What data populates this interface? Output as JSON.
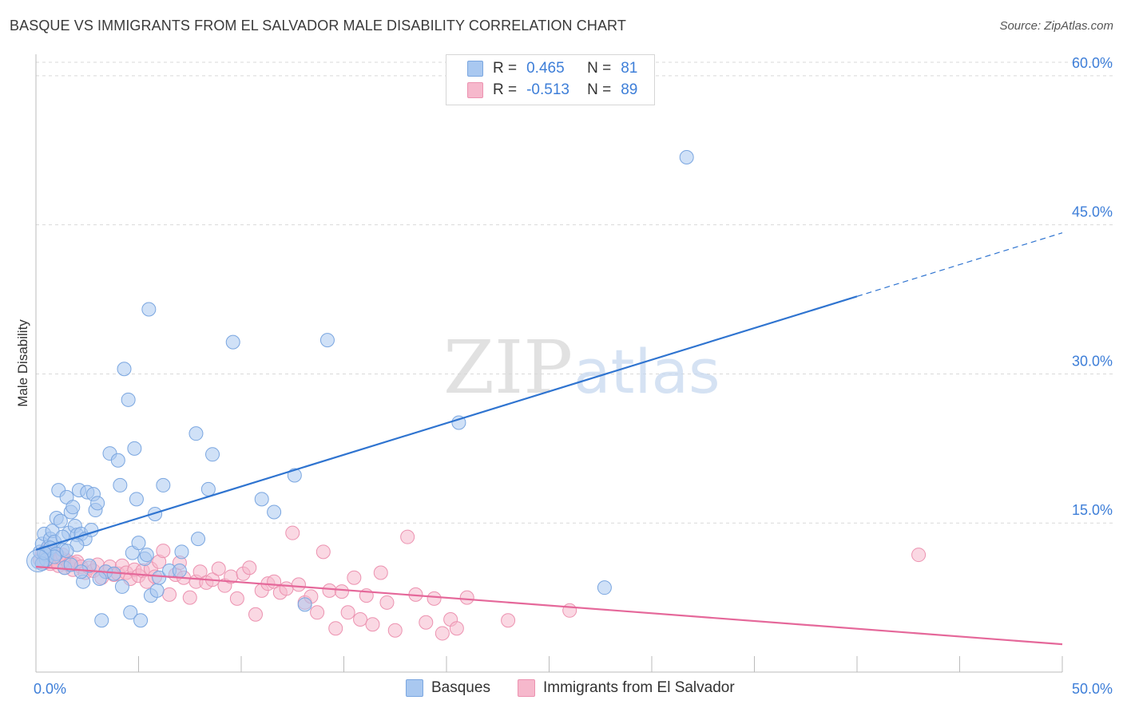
{
  "title": "BASQUE VS IMMIGRANTS FROM EL SALVADOR MALE DISABILITY CORRELATION CHART",
  "source": "Source: ZipAtlas.com",
  "watermark": {
    "zip": "ZIP",
    "atlas": "atlas"
  },
  "legend": {
    "r_label": "R =",
    "n_label": "N =",
    "rows": [
      {
        "r": "0.465",
        "n": "81"
      },
      {
        "r": "-0.513",
        "n": "89"
      }
    ]
  },
  "bottom_legend": {
    "basques": "Basques",
    "salvador": "Immigrants from El Salvador"
  },
  "colors": {
    "blue_fill": "#a9c8f0",
    "blue_stroke": "#7aa6e0",
    "blue_line": "#2f74d0",
    "pink_fill": "#f6b8cc",
    "pink_stroke": "#ec92b0",
    "pink_line": "#e5689a",
    "grid": "#d9d9d9",
    "tick_label": "#3d7ed8"
  },
  "chart_data": {
    "type": "scatter",
    "title": "BASQUE VS IMMIGRANTS FROM EL SALVADOR MALE DISABILITY CORRELATION CHART",
    "xlabel": "",
    "ylabel": "Male Disability",
    "xlim": [
      0,
      50
    ],
    "ylim": [
      0,
      62
    ],
    "x_tick_labels": [
      "0.0%",
      "50.0%"
    ],
    "y_ticks": [
      15,
      30,
      45,
      60
    ],
    "y_tick_labels": [
      "15.0%",
      "30.0%",
      "45.0%",
      "60.0%"
    ],
    "series": [
      {
        "name": "Basques",
        "r": 0.465,
        "n": 81,
        "trend": {
          "x0": 0,
          "y0": 12.3,
          "x1": 40,
          "y1": 37.8,
          "dash_to_x": 50,
          "dash_to_y": 44.2
        },
        "points": [
          [
            0.1,
            11.1
          ],
          [
            0.2,
            12.1
          ],
          [
            0.3,
            12.9
          ],
          [
            0.4,
            13.9
          ],
          [
            0.5,
            11.8
          ],
          [
            0.6,
            12.6
          ],
          [
            0.7,
            13.4
          ],
          [
            0.8,
            14.2
          ],
          [
            0.9,
            13.1
          ],
          [
            1.0,
            15.5
          ],
          [
            1.1,
            18.3
          ],
          [
            1.2,
            15.2
          ],
          [
            1.3,
            12.3
          ],
          [
            1.4,
            10.5
          ],
          [
            1.5,
            17.6
          ],
          [
            1.6,
            14.0
          ],
          [
            1.7,
            16.1
          ],
          [
            1.8,
            16.6
          ],
          [
            1.9,
            14.7
          ],
          [
            2.0,
            13.8
          ],
          [
            2.1,
            18.3
          ],
          [
            2.2,
            13.9
          ],
          [
            2.3,
            9.1
          ],
          [
            2.4,
            13.4
          ],
          [
            2.5,
            18.1
          ],
          [
            2.6,
            10.7
          ],
          [
            2.7,
            14.3
          ],
          [
            2.8,
            17.9
          ],
          [
            2.9,
            16.3
          ],
          [
            3.0,
            17.0
          ],
          [
            3.2,
            5.2
          ],
          [
            3.4,
            10.1
          ],
          [
            3.6,
            22.0
          ],
          [
            3.8,
            9.9
          ],
          [
            4.0,
            21.3
          ],
          [
            4.1,
            18.8
          ],
          [
            4.2,
            8.6
          ],
          [
            4.3,
            30.5
          ],
          [
            4.5,
            27.4
          ],
          [
            4.6,
            6.0
          ],
          [
            4.7,
            12.0
          ],
          [
            4.8,
            22.5
          ],
          [
            4.9,
            17.4
          ],
          [
            5.0,
            13.0
          ],
          [
            5.1,
            5.2
          ],
          [
            5.3,
            11.4
          ],
          [
            5.4,
            11.8
          ],
          [
            5.5,
            36.5
          ],
          [
            5.6,
            7.7
          ],
          [
            5.8,
            15.9
          ],
          [
            5.9,
            8.2
          ],
          [
            6.0,
            9.5
          ],
          [
            6.2,
            18.8
          ],
          [
            6.5,
            10.2
          ],
          [
            7.0,
            10.2
          ],
          [
            7.1,
            12.1
          ],
          [
            7.8,
            24.0
          ],
          [
            7.9,
            13.4
          ],
          [
            8.4,
            18.4
          ],
          [
            8.6,
            21.9
          ],
          [
            9.6,
            33.2
          ],
          [
            11.0,
            17.4
          ],
          [
            11.6,
            16.1
          ],
          [
            12.6,
            19.8
          ],
          [
            13.1,
            6.8
          ],
          [
            14.2,
            33.4
          ],
          [
            20.6,
            25.1
          ],
          [
            27.7,
            8.5
          ],
          [
            31.7,
            51.8
          ],
          [
            0.5,
            11.3
          ],
          [
            0.7,
            12.5
          ],
          [
            1.0,
            11.9
          ],
          [
            1.3,
            13.6
          ],
          [
            1.7,
            10.8
          ],
          [
            2.0,
            12.8
          ],
          [
            0.3,
            10.9
          ],
          [
            0.9,
            11.6
          ],
          [
            1.5,
            12.2
          ],
          [
            2.2,
            10.1
          ],
          [
            3.1,
            9.4
          ],
          [
            0.4,
            12.0
          ]
        ]
      },
      {
        "name": "Immigrants from El Salvador",
        "r": -0.513,
        "n": 89,
        "trend": {
          "x0": 0,
          "y0": 10.6,
          "x1": 50,
          "y1": 2.8
        },
        "points": [
          [
            0.2,
            11.3
          ],
          [
            0.3,
            11.9
          ],
          [
            0.4,
            11.0
          ],
          [
            0.5,
            12.3
          ],
          [
            0.6,
            11.6
          ],
          [
            0.7,
            10.9
          ],
          [
            0.8,
            11.4
          ],
          [
            0.9,
            12.0
          ],
          [
            1.0,
            11.1
          ],
          [
            1.1,
            10.7
          ],
          [
            1.2,
            11.5
          ],
          [
            1.3,
            11.8
          ],
          [
            1.4,
            10.5
          ],
          [
            1.5,
            11.2
          ],
          [
            1.6,
            10.8
          ],
          [
            1.7,
            11.0
          ],
          [
            1.8,
            10.3
          ],
          [
            1.9,
            10.9
          ],
          [
            2.0,
            11.1
          ],
          [
            2.2,
            10.6
          ],
          [
            2.4,
            10.0
          ],
          [
            2.6,
            10.5
          ],
          [
            2.8,
            10.2
          ],
          [
            3.0,
            10.8
          ],
          [
            3.2,
            9.5
          ],
          [
            3.4,
            10.1
          ],
          [
            3.6,
            10.6
          ],
          [
            3.8,
            9.8
          ],
          [
            4.0,
            9.9
          ],
          [
            4.2,
            10.7
          ],
          [
            4.4,
            10.0
          ],
          [
            4.6,
            9.4
          ],
          [
            4.8,
            10.3
          ],
          [
            5.0,
            9.7
          ],
          [
            5.2,
            10.2
          ],
          [
            5.4,
            9.1
          ],
          [
            5.6,
            10.4
          ],
          [
            5.8,
            9.6
          ],
          [
            6.0,
            11.1
          ],
          [
            6.2,
            12.2
          ],
          [
            6.5,
            7.8
          ],
          [
            6.8,
            9.8
          ],
          [
            7.0,
            11.0
          ],
          [
            7.2,
            9.5
          ],
          [
            7.5,
            7.5
          ],
          [
            7.8,
            9.1
          ],
          [
            8.0,
            10.1
          ],
          [
            8.3,
            9.0
          ],
          [
            8.6,
            9.3
          ],
          [
            8.9,
            10.4
          ],
          [
            9.2,
            8.7
          ],
          [
            9.5,
            9.6
          ],
          [
            9.8,
            7.4
          ],
          [
            10.1,
            9.9
          ],
          [
            10.4,
            10.5
          ],
          [
            10.7,
            5.8
          ],
          [
            11.0,
            8.2
          ],
          [
            11.3,
            8.9
          ],
          [
            11.6,
            9.1
          ],
          [
            11.9,
            8.0
          ],
          [
            12.2,
            8.4
          ],
          [
            12.5,
            14.0
          ],
          [
            12.8,
            8.8
          ],
          [
            13.1,
            7.0
          ],
          [
            13.4,
            7.6
          ],
          [
            13.7,
            6.0
          ],
          [
            14.0,
            12.1
          ],
          [
            14.3,
            8.2
          ],
          [
            14.6,
            4.4
          ],
          [
            14.9,
            8.1
          ],
          [
            15.2,
            6.0
          ],
          [
            15.5,
            9.5
          ],
          [
            15.8,
            5.3
          ],
          [
            16.1,
            7.7
          ],
          [
            16.4,
            4.8
          ],
          [
            16.8,
            10.0
          ],
          [
            17.1,
            7.0
          ],
          [
            17.5,
            4.2
          ],
          [
            18.1,
            13.6
          ],
          [
            18.5,
            7.8
          ],
          [
            19.0,
            5.0
          ],
          [
            19.4,
            7.4
          ],
          [
            19.8,
            3.9
          ],
          [
            20.2,
            5.3
          ],
          [
            20.5,
            4.4
          ],
          [
            21.0,
            7.5
          ],
          [
            23.0,
            5.2
          ],
          [
            26.0,
            6.2
          ],
          [
            43.0,
            11.8
          ]
        ]
      }
    ]
  }
}
